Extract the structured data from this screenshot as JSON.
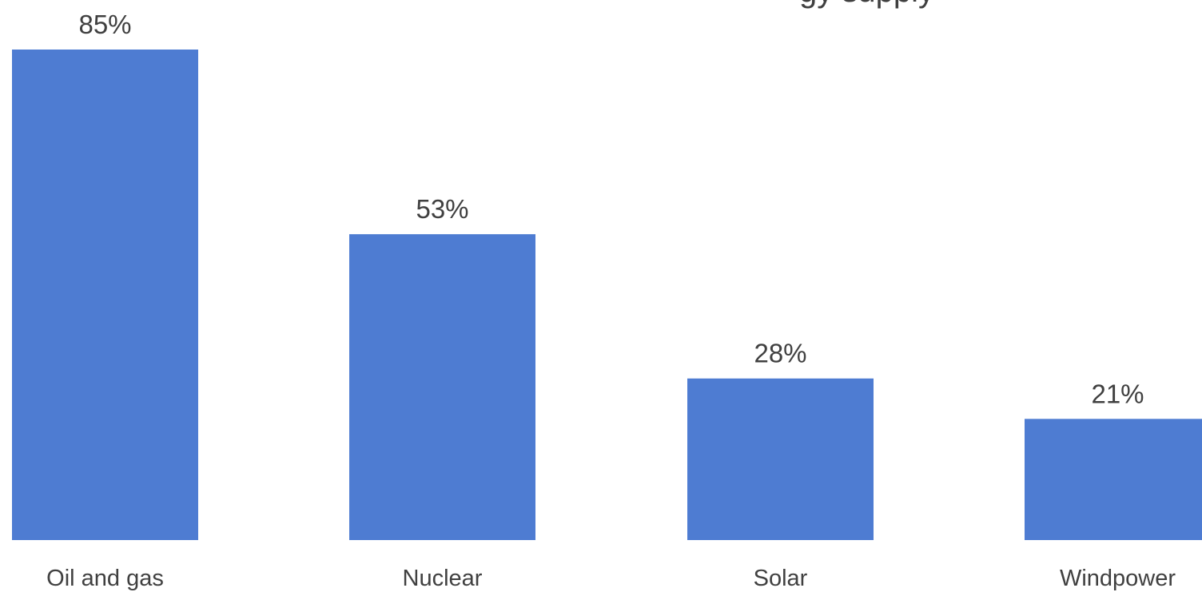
{
  "chart_data": {
    "type": "bar",
    "title_visible_fragment": "gy supply",
    "categories": [
      "Oil and gas",
      "Nuclear",
      "Solar",
      "Windpower"
    ],
    "values": [
      85,
      53,
      28,
      21
    ],
    "data_labels": [
      "85%",
      "53%",
      "28%",
      "21%"
    ],
    "value_unit": "%",
    "ylim": [
      0,
      90
    ],
    "grid": false,
    "legend": "none",
    "bar_color": "#4E7CD2",
    "text_color": "#404040"
  }
}
